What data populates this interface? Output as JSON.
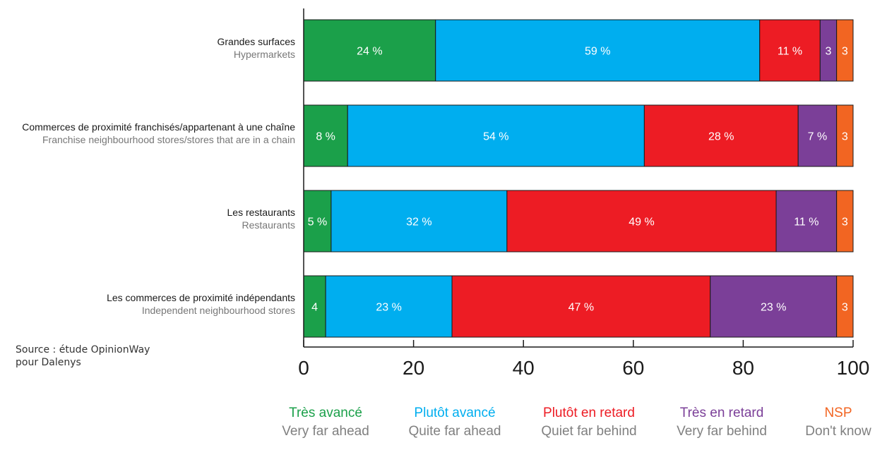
{
  "chart_data": {
    "type": "bar",
    "orientation": "horizontal",
    "stacked": true,
    "categories": [
      {
        "fr": "Grandes surfaces",
        "en": "Hypermarkets"
      },
      {
        "fr": "Commerces de proximité franchisés/appartenant à une chaîne",
        "en": "Franchise neighbourhood stores/stores that are in a chain"
      },
      {
        "fr": "Les restaurants",
        "en": "Restaurants"
      },
      {
        "fr": "Les commerces de proximité indépendants",
        "en": "Independent neighbourhood stores"
      }
    ],
    "series": [
      {
        "name": "Très avancé",
        "name_en": "Very far ahead",
        "color": "#1BA04A",
        "values": [
          24,
          8,
          5,
          4
        ],
        "labels": [
          "24 %",
          "8 %",
          "5 %",
          "4"
        ]
      },
      {
        "name": "Plutôt avancé",
        "name_en": "Quite far ahead",
        "color": "#00AEEF",
        "values": [
          59,
          54,
          32,
          23
        ],
        "labels": [
          "59 %",
          "54 %",
          "32 %",
          "23 %"
        ]
      },
      {
        "name": "Plutôt en retard",
        "name_en": "Quiet far behind",
        "color": "#ED1C24",
        "values": [
          11,
          28,
          49,
          47
        ],
        "labels": [
          "11 %",
          "28 %",
          "49 %",
          "47 %"
        ]
      },
      {
        "name": "Très en retard",
        "name_en": "Very far behind",
        "color": "#7B3F98",
        "values": [
          3,
          7,
          11,
          23
        ],
        "labels": [
          "3",
          "7 %",
          "11 %",
          "23 %"
        ]
      },
      {
        "name": "NSP",
        "name_en": "Don't know",
        "color": "#F26522",
        "values": [
          3,
          3,
          3,
          3
        ],
        "labels": [
          "3",
          "3",
          "3",
          "3"
        ]
      }
    ],
    "xlim": [
      0,
      100
    ],
    "xticks": [
      0,
      20,
      40,
      60,
      80,
      100
    ],
    "xtick_labels": [
      "0",
      "20",
      "40",
      "60",
      "80",
      "100"
    ],
    "grid": false,
    "legend_position": "bottom"
  },
  "source": {
    "line1": "Source : étude OpinionWay",
    "line2": "pour Dalenys"
  }
}
